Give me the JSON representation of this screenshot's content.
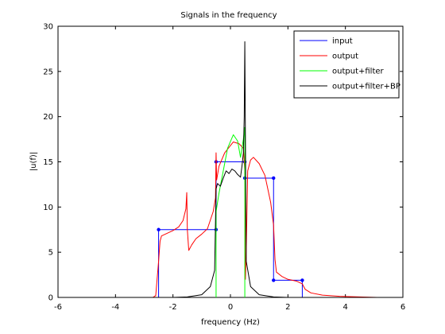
{
  "chart_data": {
    "type": "line",
    "title": "Signals in the frequency",
    "xlabel": "frequency (Hz)",
    "ylabel": "|u(f)|",
    "xlim": [
      -6,
      6
    ],
    "ylim": [
      0,
      30
    ],
    "xticks": [
      "-6",
      "-4",
      "-2",
      "0",
      "2",
      "4",
      "6"
    ],
    "yticks": [
      "0",
      "5",
      "10",
      "15",
      "20",
      "25",
      "30"
    ],
    "grid": false,
    "legend_position": "top-right",
    "series": [
      {
        "name": "input",
        "color": "#0000ff",
        "points": [
          [
            -2.5,
            0
          ],
          [
            -2.5,
            7.5
          ],
          [
            -0.5,
            7.5
          ],
          [
            -0.5,
            15
          ],
          [
            0.5,
            15
          ],
          [
            0.5,
            13.2
          ],
          [
            1.5,
            13.2
          ],
          [
            1.5,
            1.9
          ],
          [
            2.5,
            1.9
          ],
          [
            2.5,
            0
          ]
        ]
      },
      {
        "name": "output",
        "color": "#ff0000",
        "points": [
          [
            -2.7,
            0
          ],
          [
            -2.6,
            0.2
          ],
          [
            -2.5,
            4.0
          ],
          [
            -2.45,
            6.2
          ],
          [
            -2.4,
            6.8
          ],
          [
            -2.2,
            7.1
          ],
          [
            -2.0,
            7.4
          ],
          [
            -1.8,
            7.8
          ],
          [
            -1.65,
            8.5
          ],
          [
            -1.55,
            9.8
          ],
          [
            -1.52,
            11.6
          ],
          [
            -1.5,
            7.5
          ],
          [
            -1.45,
            5.2
          ],
          [
            -1.35,
            5.8
          ],
          [
            -1.2,
            6.5
          ],
          [
            -1.0,
            7.0
          ],
          [
            -0.8,
            7.6
          ],
          [
            -0.6,
            9.5
          ],
          [
            -0.52,
            11.0
          ],
          [
            -0.5,
            16.0
          ],
          [
            -0.48,
            13.0
          ],
          [
            -0.4,
            14.5
          ],
          [
            -0.2,
            16.0
          ],
          [
            0.1,
            17.2
          ],
          [
            0.3,
            17.0
          ],
          [
            0.45,
            16.5
          ],
          [
            0.5,
            14.0
          ],
          [
            0.52,
            2.0
          ],
          [
            0.55,
            5.0
          ],
          [
            0.6,
            14.0
          ],
          [
            0.7,
            15.2
          ],
          [
            0.8,
            15.5
          ],
          [
            1.0,
            14.8
          ],
          [
            1.2,
            13.5
          ],
          [
            1.4,
            10.5
          ],
          [
            1.5,
            8.0
          ],
          [
            1.55,
            4.2
          ],
          [
            1.6,
            2.8
          ],
          [
            1.8,
            2.3
          ],
          [
            2.0,
            2.0
          ],
          [
            2.3,
            1.8
          ],
          [
            2.5,
            1.5
          ],
          [
            2.6,
            0.9
          ],
          [
            2.8,
            0.5
          ],
          [
            3.2,
            0.25
          ],
          [
            3.8,
            0.12
          ],
          [
            4.5,
            0.05
          ],
          [
            5.1,
            0.0
          ]
        ]
      },
      {
        "name": "output+filter",
        "color": "#00ff00",
        "points": [
          [
            -0.5,
            0
          ],
          [
            -0.5,
            9.5
          ],
          [
            -0.4,
            11.5
          ],
          [
            -0.25,
            14.0
          ],
          [
            -0.1,
            16.5
          ],
          [
            0.1,
            18.0
          ],
          [
            0.25,
            17.3
          ],
          [
            0.35,
            15.5
          ],
          [
            0.45,
            17.5
          ],
          [
            0.5,
            18.8
          ],
          [
            0.5,
            0
          ]
        ]
      },
      {
        "name": "output+filter+BP",
        "color": "#000000",
        "points": [
          [
            -5.1,
            0
          ],
          [
            -2.0,
            0
          ],
          [
            -1.5,
            0.05
          ],
          [
            -1.0,
            0.3
          ],
          [
            -0.7,
            1.2
          ],
          [
            -0.55,
            3.0
          ],
          [
            -0.5,
            12.0
          ],
          [
            -0.45,
            12.6
          ],
          [
            -0.35,
            12.3
          ],
          [
            -0.25,
            13.2
          ],
          [
            -0.15,
            14.0
          ],
          [
            -0.05,
            13.7
          ],
          [
            0.05,
            14.2
          ],
          [
            0.15,
            14.0
          ],
          [
            0.25,
            13.6
          ],
          [
            0.35,
            13.3
          ],
          [
            0.4,
            14.5
          ],
          [
            0.45,
            16.0
          ],
          [
            0.48,
            20.0
          ],
          [
            0.5,
            28.3
          ],
          [
            0.52,
            18.0
          ],
          [
            0.55,
            4.0
          ],
          [
            0.7,
            1.2
          ],
          [
            1.0,
            0.3
          ],
          [
            1.5,
            0.05
          ],
          [
            2.0,
            0
          ],
          [
            5.1,
            0
          ]
        ]
      }
    ]
  }
}
